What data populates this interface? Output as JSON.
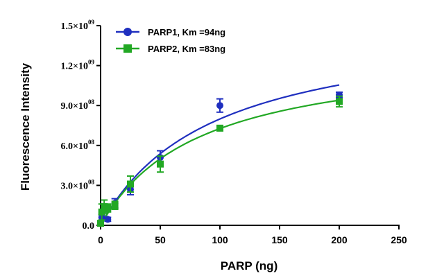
{
  "chart_data": {
    "type": "scatter",
    "xlabel": "PARP (ng)",
    "ylabel": "Fluorescence Intensity",
    "xlim": [
      0,
      250
    ],
    "ylim": [
      0,
      1500000000
    ],
    "x_ticks": [
      {
        "value": 0,
        "label": "0"
      },
      {
        "value": 50,
        "label": "50"
      },
      {
        "value": 100,
        "label": "100"
      },
      {
        "value": 150,
        "label": "150"
      },
      {
        "value": 200,
        "label": "200"
      },
      {
        "value": 250,
        "label": "250"
      }
    ],
    "y_ticks": [
      {
        "value": 0,
        "mant": "0.0",
        "exp": ""
      },
      {
        "value": 300000000,
        "mant": "3.0×10",
        "exp": "08"
      },
      {
        "value": 600000000,
        "mant": "6.0×10",
        "exp": "08"
      },
      {
        "value": 900000000,
        "mant": "9.0×10",
        "exp": "08"
      },
      {
        "value": 1200000000,
        "mant": "1.2×10",
        "exp": "09"
      },
      {
        "value": 1500000000,
        "mant": "1.5×10",
        "exp": "09"
      }
    ],
    "grid": false,
    "legend_position": "top-left",
    "series": [
      {
        "name": "PARP1, Km =94ng",
        "color": "#1f2fbf",
        "marker": "circle",
        "Vmax": 1550000000,
        "Km": 94,
        "points": [
          {
            "x": 0,
            "y": 20000000,
            "err": 10000000
          },
          {
            "x": 1,
            "y": 60000000,
            "err": 20000000
          },
          {
            "x": 3,
            "y": 130000000,
            "err": 30000000
          },
          {
            "x": 6,
            "y": 45000000,
            "err": 15000000
          },
          {
            "x": 12,
            "y": 165000000,
            "err": 35000000
          },
          {
            "x": 25,
            "y": 270000000,
            "err": 40000000
          },
          {
            "x": 50,
            "y": 510000000,
            "err": 50000000
          },
          {
            "x": 100,
            "y": 900000000,
            "err": 50000000
          },
          {
            "x": 200,
            "y": 980000000,
            "err": 20000000
          }
        ]
      },
      {
        "name": "PARP2, Km =83ng",
        "color": "#22a824",
        "marker": "square",
        "Vmax": 1330000000,
        "Km": 83,
        "points": [
          {
            "x": 0,
            "y": 15000000,
            "err": 10000000
          },
          {
            "x": 1,
            "y": 100000000,
            "err": 60000000
          },
          {
            "x": 3,
            "y": 140000000,
            "err": 50000000
          },
          {
            "x": 6,
            "y": 130000000,
            "err": 30000000
          },
          {
            "x": 12,
            "y": 150000000,
            "err": 30000000
          },
          {
            "x": 25,
            "y": 310000000,
            "err": 60000000
          },
          {
            "x": 50,
            "y": 460000000,
            "err": 60000000
          },
          {
            "x": 100,
            "y": 730000000,
            "err": 20000000
          },
          {
            "x": 200,
            "y": 930000000,
            "err": 40000000
          }
        ]
      }
    ]
  }
}
